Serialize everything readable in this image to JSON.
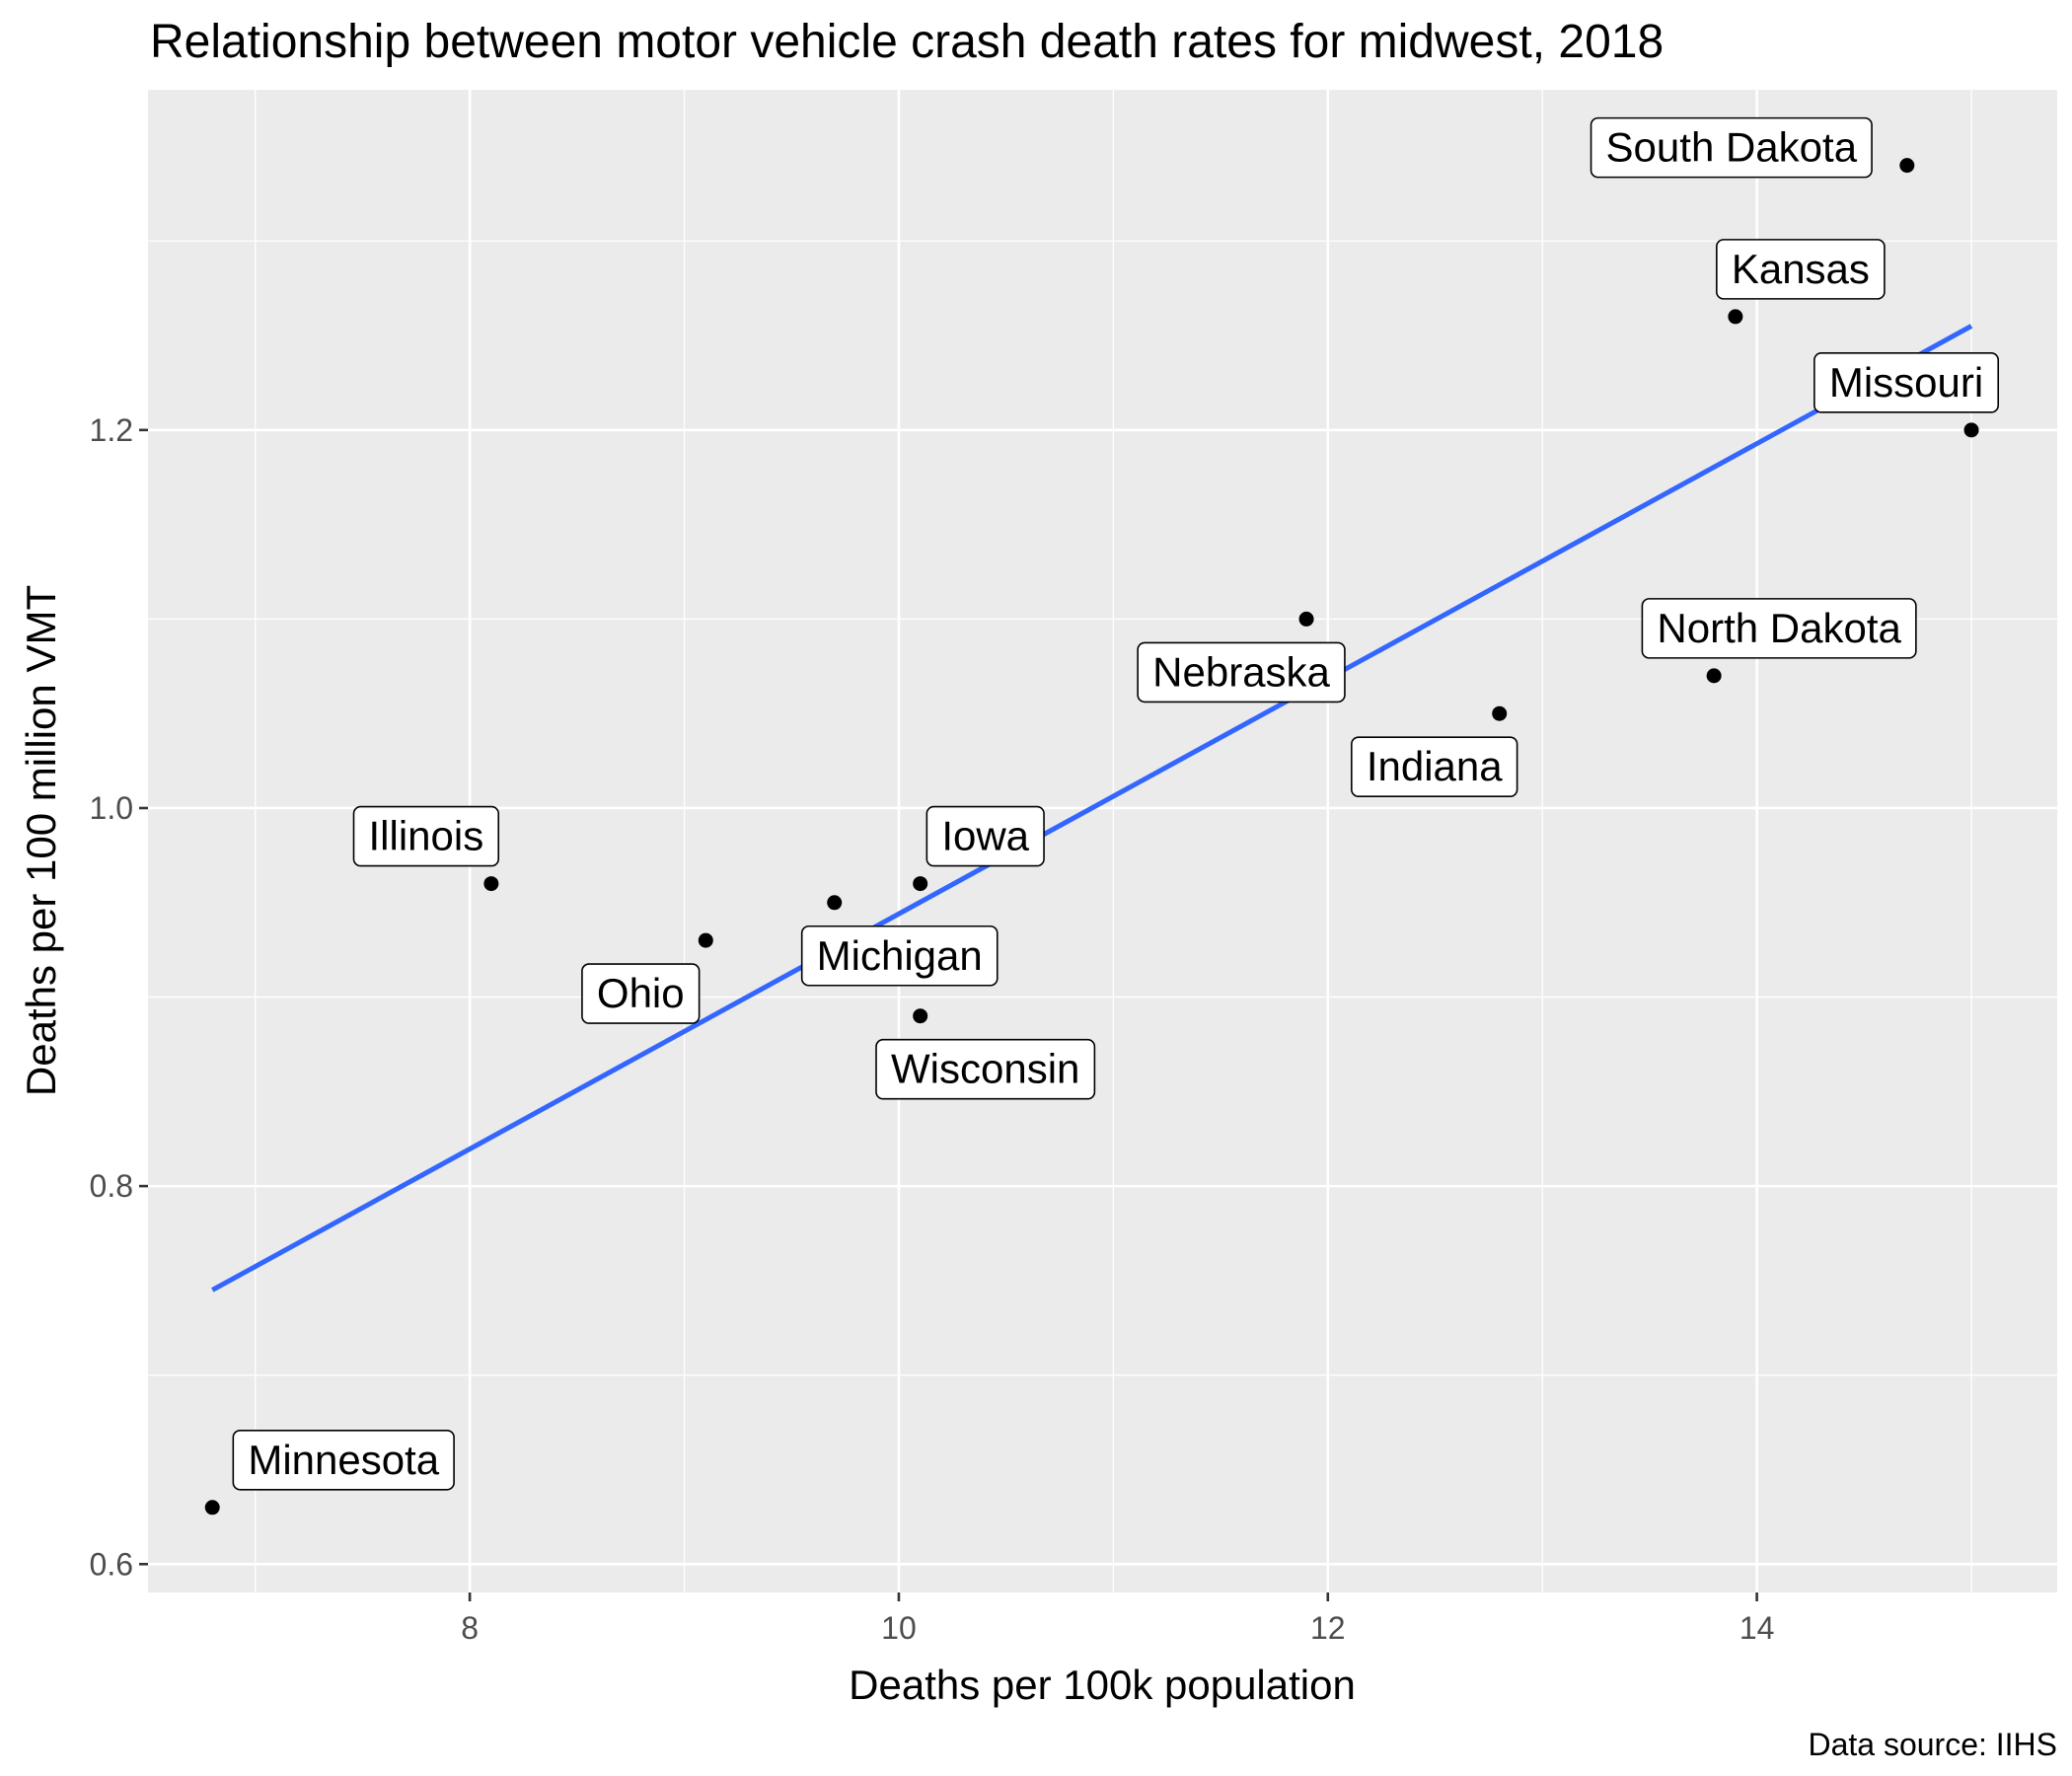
{
  "chart_data": {
    "type": "scatter",
    "title": "Relationship between motor vehicle crash death rates for midwest, 2018",
    "xlabel": "Deaths per 100k population",
    "ylabel": "Deaths per 100 million VMT",
    "caption": "Data source: IIHS",
    "xlim": [
      6.5,
      15.4
    ],
    "ylim": [
      0.585,
      1.38
    ],
    "xticks": [
      8,
      10,
      12,
      14
    ],
    "xtick_labels": [
      "8",
      "10",
      "12",
      "14"
    ],
    "yticks": [
      0.6,
      0.8,
      1.0,
      1.2
    ],
    "ytick_labels": [
      "0.6",
      "0.8",
      "1.0",
      "1.2"
    ],
    "grid": true,
    "legend": "none",
    "colors": {
      "panel_background": "#ebebeb",
      "grid_line": "#ffffff",
      "point": "#000000",
      "trend_line": "#3366ff"
    },
    "points": [
      {
        "state": "Minnesota",
        "x": 6.8,
        "y": 0.63
      },
      {
        "state": "Illinois",
        "x": 8.1,
        "y": 0.96
      },
      {
        "state": "Ohio",
        "x": 9.1,
        "y": 0.93
      },
      {
        "state": "Michigan",
        "x": 9.7,
        "y": 0.95
      },
      {
        "state": "Iowa",
        "x": 10.1,
        "y": 0.96
      },
      {
        "state": "Wisconsin",
        "x": 10.1,
        "y": 0.89
      },
      {
        "state": "Nebraska",
        "x": 11.9,
        "y": 1.1
      },
      {
        "state": "Indiana",
        "x": 12.8,
        "y": 1.05
      },
      {
        "state": "North Dakota",
        "x": 13.8,
        "y": 1.07
      },
      {
        "state": "Kansas",
        "x": 13.9,
        "y": 1.26
      },
      {
        "state": "South Dakota",
        "x": 14.7,
        "y": 1.34
      },
      {
        "state": "Missouri",
        "x": 15.0,
        "y": 1.2
      }
    ],
    "trend_line": {
      "method": "linear fit",
      "x": [
        6.8,
        15.0
      ],
      "y": [
        0.745,
        1.255
      ]
    }
  }
}
